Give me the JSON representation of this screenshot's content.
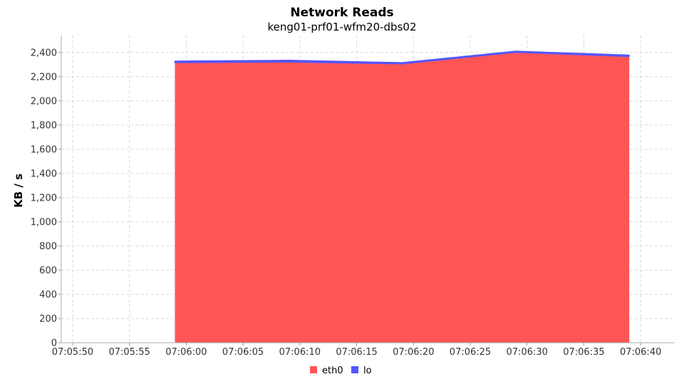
{
  "chart_data": {
    "type": "area",
    "stacked": true,
    "title": "Network Reads",
    "subtitle": "keng01-prf01-wfm20-dbs02",
    "xlabel": "",
    "ylabel": "KB / s",
    "x_ticks": [
      "07:05:50",
      "07:05:55",
      "07:06:00",
      "07:06:05",
      "07:06:10",
      "07:06:15",
      "07:06:20",
      "07:06:25",
      "07:06:30",
      "07:06:35",
      "07:06:40"
    ],
    "xlim": [
      "07:05:49",
      "07:06:43"
    ],
    "y_ticks": [
      "0",
      "200",
      "400",
      "600",
      "800",
      "1,000",
      "1,200",
      "1,400",
      "1,600",
      "1,800",
      "2,000",
      "2,200",
      "2,400"
    ],
    "ylim": [
      0,
      2540
    ],
    "grid": true,
    "legend_position": "bottom",
    "x": [
      "07:05:59",
      "07:06:09",
      "07:06:19",
      "07:06:29",
      "07:06:39"
    ],
    "series": [
      {
        "name": "eth0",
        "color": "#ff5555",
        "values": [
          2315,
          2320,
          2305,
          2400,
          2365
        ]
      },
      {
        "name": "lo",
        "color": "#5555ff",
        "values": [
          15,
          17,
          12,
          12,
          15
        ]
      }
    ]
  }
}
